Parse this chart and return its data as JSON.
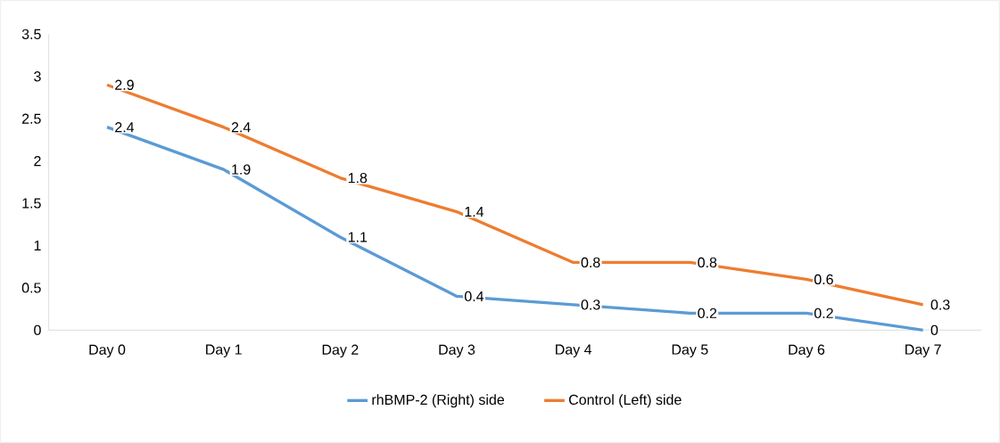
{
  "chart_data": {
    "type": "line",
    "categories": [
      "Day 0",
      "Day 1",
      "Day 2",
      "Day 3",
      "Day 4",
      "Day 5",
      "Day 6",
      "Day 7"
    ],
    "series": [
      {
        "name": "rhBMP-2 (Right) side",
        "color": "#5b9bd5",
        "values": [
          2.4,
          1.9,
          1.1,
          0.4,
          0.3,
          0.2,
          0.2,
          0
        ]
      },
      {
        "name": "Control (Left) side",
        "color": "#ed7d31",
        "values": [
          2.9,
          2.4,
          1.8,
          1.4,
          0.8,
          0.8,
          0.6,
          0.3
        ]
      }
    ],
    "ylim": [
      0,
      3.5
    ],
    "yticks": [
      0,
      0.5,
      1,
      1.5,
      2,
      2.5,
      3,
      3.5
    ],
    "grid": false,
    "legend": "bottom",
    "data_labels": true,
    "marker": "none",
    "line_style": "solid"
  }
}
